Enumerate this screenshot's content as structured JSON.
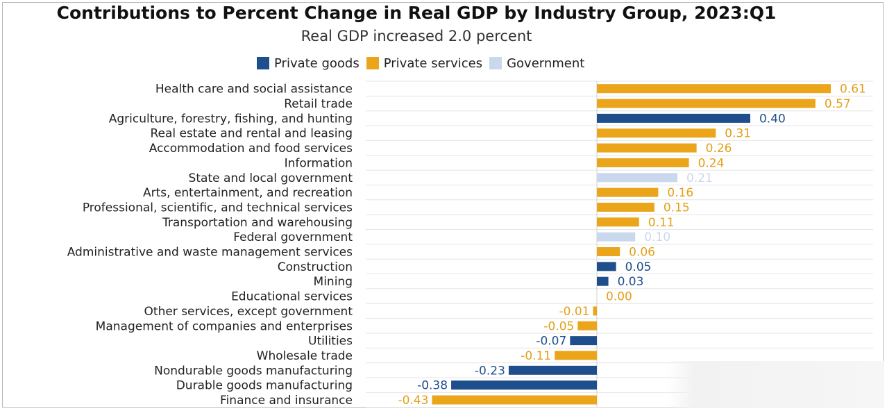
{
  "chart_data": {
    "type": "bar",
    "orientation": "horizontal",
    "title": "Contributions to Percent Change in Real GDP by Industry Group, 2023:Q1",
    "subtitle": "Real GDP increased 2.0 percent",
    "xlabel": "",
    "ylabel": "",
    "xlim": [
      -0.48,
      0.62
    ],
    "legend": [
      {
        "name": "Private goods",
        "color": "#1f4e8c"
      },
      {
        "name": "Private services",
        "color": "#eaa51b"
      },
      {
        "name": "Government",
        "color": "#c9d8ec"
      }
    ],
    "value_label_colors": {
      "Private goods": "#1f4e8c",
      "Private services": "#e3a019",
      "Government": "#c9d8ec"
    },
    "categories": [
      "Health care and social assistance",
      "Retail trade",
      "Agriculture, forestry, fishing, and hunting",
      "Real estate and rental and leasing",
      "Accommodation and food services",
      "Information",
      "State and local government",
      "Arts, entertainment, and recreation",
      "Professional, scientific, and technical services",
      "Transportation and warehousing",
      "Federal government",
      "Administrative and waste management services",
      "Construction",
      "Mining",
      "Educational services",
      "Other services, except government",
      "Management of companies and enterprises",
      "Utilities",
      "Wholesale trade",
      "Nondurable goods manufacturing",
      "Durable goods manufacturing",
      "Finance and insurance"
    ],
    "values": [
      0.61,
      0.57,
      0.4,
      0.31,
      0.26,
      0.24,
      0.21,
      0.16,
      0.15,
      0.11,
      0.1,
      0.06,
      0.05,
      0.03,
      0.0,
      -0.01,
      -0.05,
      -0.07,
      -0.11,
      -0.23,
      -0.38,
      -0.43
    ],
    "value_labels": [
      "0.61",
      "0.57",
      "0.40",
      "0.31",
      "0.26",
      "0.24",
      "0.21",
      "0.16",
      "0.15",
      "0.11",
      "0.10",
      "0.06",
      "0.05",
      "0.03",
      "0.00",
      "-0.01",
      "-0.05",
      "-0.07",
      "-0.11",
      "-0.23",
      "-0.38",
      "-0.43"
    ],
    "groups": [
      "Private services",
      "Private services",
      "Private goods",
      "Private services",
      "Private services",
      "Private services",
      "Government",
      "Private services",
      "Private services",
      "Private services",
      "Government",
      "Private services",
      "Private goods",
      "Private goods",
      "Private services",
      "Private services",
      "Private services",
      "Private goods",
      "Private services",
      "Private goods",
      "Private goods",
      "Private services"
    ]
  }
}
